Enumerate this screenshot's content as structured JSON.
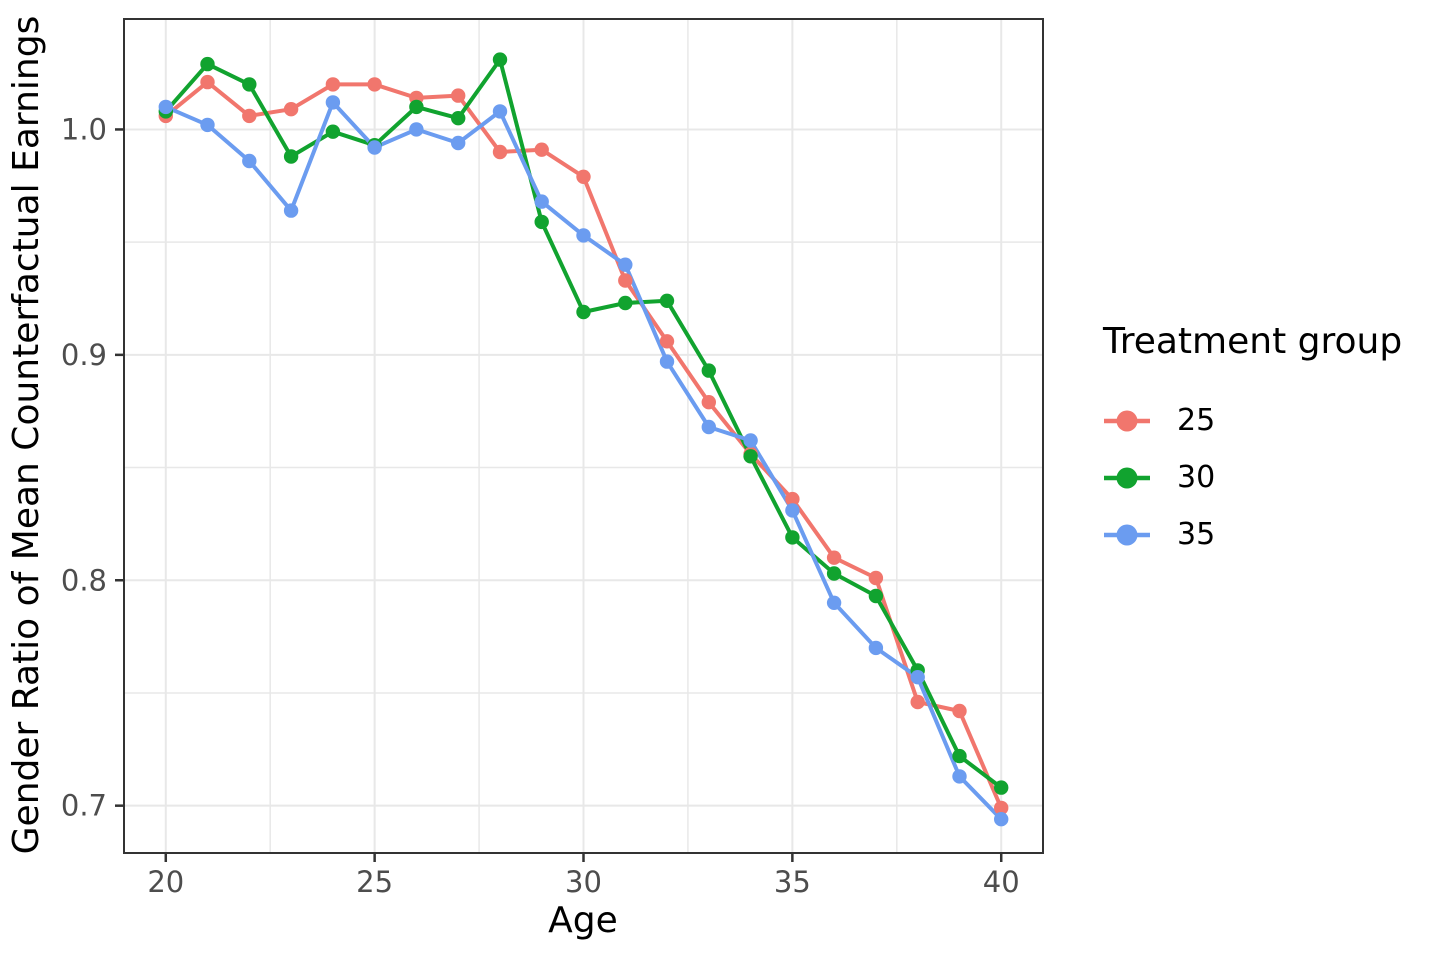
{
  "colors": {
    "background": "#FFFFFF",
    "panel_border": "#333333",
    "gridline": "#E8E8E8",
    "tick_mark": "#333333",
    "tick_label": "#4D4D4D",
    "axis_title": "#000000"
  },
  "chart_data": {
    "type": "line",
    "title": "",
    "xlabel": "Age",
    "ylabel": "Gender Ratio of Mean Counterfactual Earnings",
    "legend": {
      "title": "Treatment group",
      "position": "right",
      "entries": [
        "25",
        "30",
        "35"
      ]
    },
    "x": [
      20,
      21,
      22,
      23,
      24,
      25,
      26,
      27,
      28,
      29,
      30,
      31,
      32,
      33,
      34,
      35,
      36,
      37,
      38,
      39,
      40
    ],
    "series": [
      {
        "name": "25",
        "color": "#F1766D",
        "values": [
          1.006,
          1.021,
          1.006,
          1.009,
          1.02,
          1.02,
          1.014,
          1.015,
          0.99,
          0.991,
          0.979,
          0.933,
          0.906,
          0.879,
          0.856,
          0.836,
          0.81,
          0.801,
          0.746,
          0.742,
          0.699
        ]
      },
      {
        "name": "30",
        "color": "#11A32F",
        "values": [
          1.008,
          1.029,
          1.02,
          0.988,
          0.999,
          0.993,
          1.01,
          1.005,
          1.031,
          0.959,
          0.919,
          0.923,
          0.924,
          0.893,
          0.855,
          0.819,
          0.803,
          0.793,
          0.76,
          0.722,
          0.708
        ]
      },
      {
        "name": "35",
        "color": "#6B9CF0",
        "values": [
          1.01,
          1.002,
          0.986,
          0.964,
          1.012,
          0.992,
          1.0,
          0.994,
          1.008,
          0.968,
          0.953,
          0.94,
          0.897,
          0.868,
          0.862,
          0.831,
          0.79,
          0.77,
          0.757,
          0.713,
          0.694
        ]
      }
    ],
    "x_ticks": [
      20,
      25,
      30,
      35,
      40
    ],
    "x_minor_ticks": [
      22.5,
      27.5,
      32.5,
      37.5
    ],
    "y_ticks": [
      1.0,
      0.9,
      0.8,
      0.7
    ],
    "y_tick_labels": [
      "1.0",
      "0.9",
      "0.8",
      "0.7"
    ],
    "y_minor_ticks": [
      0.95,
      0.85,
      0.75
    ],
    "xlim": [
      19.0,
      41.0
    ],
    "ylim": [
      0.679,
      1.049
    ],
    "grid": true
  }
}
